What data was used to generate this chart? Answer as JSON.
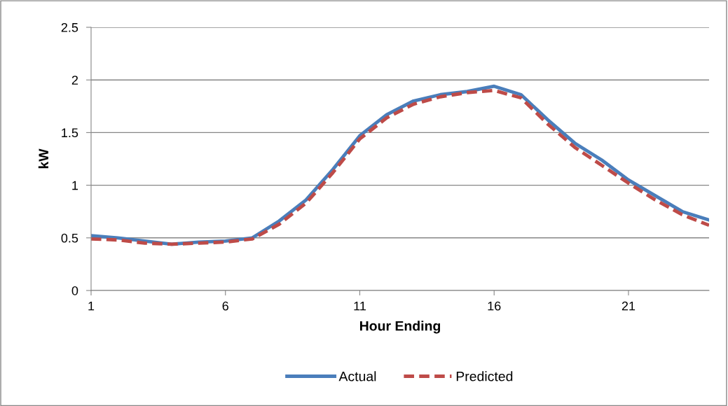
{
  "chart_data": {
    "type": "line",
    "xlabel": "Hour Ending",
    "ylabel": "kW",
    "x": [
      1,
      2,
      3,
      4,
      5,
      6,
      7,
      8,
      9,
      10,
      11,
      12,
      13,
      14,
      15,
      16,
      17,
      18,
      19,
      20,
      21,
      22,
      23,
      24
    ],
    "series": [
      {
        "name": "Actual",
        "color": "#4a7ebb",
        "line_style": "solid",
        "values": [
          0.52,
          0.5,
          0.47,
          0.44,
          0.46,
          0.47,
          0.5,
          0.66,
          0.86,
          1.15,
          1.47,
          1.67,
          1.8,
          1.86,
          1.89,
          1.94,
          1.86,
          1.62,
          1.4,
          1.24,
          1.05,
          0.9,
          0.75,
          0.67
        ]
      },
      {
        "name": "Predicted",
        "color": "#be4b48",
        "line_style": "dashed",
        "values": [
          0.49,
          0.48,
          0.45,
          0.44,
          0.45,
          0.46,
          0.49,
          0.63,
          0.83,
          1.12,
          1.44,
          1.64,
          1.77,
          1.84,
          1.88,
          1.9,
          1.83,
          1.58,
          1.36,
          1.19,
          1.02,
          0.86,
          0.72,
          0.62
        ]
      }
    ],
    "xlim": [
      1,
      24
    ],
    "xticks": [
      1,
      6,
      11,
      16,
      21
    ],
    "ylim": [
      0,
      2.5
    ],
    "yticks": [
      0,
      0.5,
      1,
      1.5,
      2,
      2.5
    ],
    "grid": "y",
    "legend": "bottom",
    "marker": "none"
  }
}
